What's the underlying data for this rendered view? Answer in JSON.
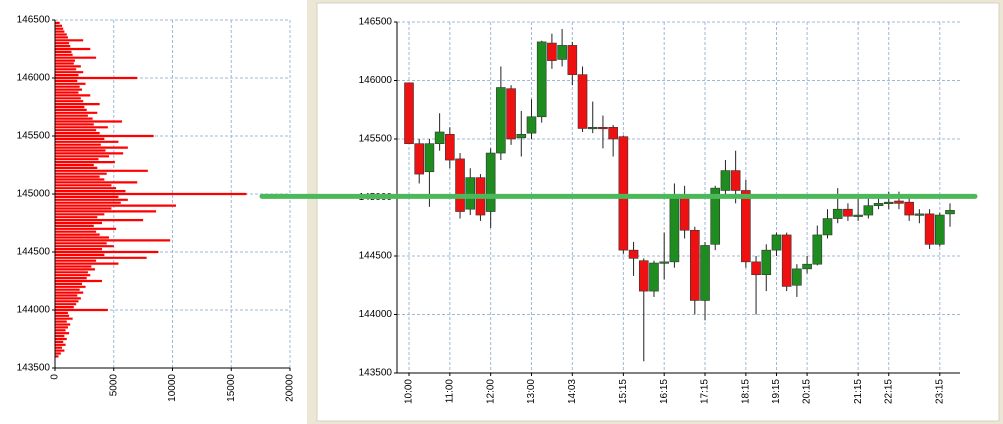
{
  "chart_data": [
    {
      "type": "barh",
      "color": "#ff0000",
      "y": [
        143600,
        143625,
        143650,
        143675,
        143700,
        143725,
        143750,
        143775,
        143800,
        143825,
        143850,
        143875,
        143900,
        143925,
        143950,
        143975,
        144000,
        144025,
        144050,
        144075,
        144100,
        144125,
        144150,
        144175,
        144200,
        144225,
        144250,
        144275,
        144300,
        144325,
        144350,
        144375,
        144400,
        144425,
        144450,
        144475,
        144500,
        144525,
        144550,
        144575,
        144600,
        144625,
        144650,
        144675,
        144700,
        144725,
        144750,
        144775,
        144800,
        144825,
        144850,
        144875,
        144900,
        144925,
        144950,
        144975,
        145000,
        145025,
        145050,
        145075,
        145100,
        145125,
        145150,
        145175,
        145200,
        145225,
        145250,
        145275,
        145300,
        145325,
        145350,
        145375,
        145400,
        145425,
        145450,
        145475,
        145500,
        145525,
        145550,
        145575,
        145600,
        145625,
        145650,
        145675,
        145700,
        145725,
        145750,
        145775,
        145800,
        145825,
        145850,
        145875,
        145900,
        145925,
        145950,
        145975,
        146000,
        146025,
        146050,
        146075,
        146100,
        146125,
        146150,
        146175,
        146200,
        146225,
        146250,
        146275,
        146300,
        146325,
        146350,
        146375,
        146400,
        146425,
        146450,
        146475
      ],
      "values": [
        300,
        500,
        800,
        600,
        900,
        700,
        1000,
        800,
        1200,
        900,
        1100,
        1300,
        1000,
        1500,
        1200,
        1100,
        4500,
        1600,
        1800,
        2000,
        2200,
        1900,
        2400,
        2100,
        2600,
        2300,
        4000,
        2700,
        3000,
        2800,
        3400,
        3100,
        5400,
        3500,
        7800,
        4200,
        8800,
        4000,
        5000,
        4400,
        9800,
        4600,
        3800,
        3500,
        5200,
        3300,
        4000,
        7500,
        3600,
        4200,
        8600,
        4800,
        10300,
        5600,
        6200,
        5400,
        16300,
        6000,
        5200,
        4800,
        7000,
        4200,
        3800,
        4400,
        7900,
        3600,
        3300,
        5100,
        3700,
        4600,
        5800,
        4300,
        6200,
        3900,
        5400,
        4200,
        8400,
        3800,
        3500,
        4500,
        3300,
        5700,
        3200,
        2800,
        3600,
        2700,
        2500,
        3800,
        2400,
        2200,
        3000,
        2000,
        2300,
        2100,
        2600,
        1900,
        7000,
        2000,
        2400,
        1800,
        2200,
        1600,
        1700,
        3500,
        1500,
        1400,
        3000,
        1300,
        1200,
        2400,
        1100,
        1000,
        800,
        700,
        600,
        400
      ],
      "xlim": [
        0,
        20000
      ],
      "xticks": [
        0,
        5000,
        10000,
        15000,
        20000
      ],
      "ylim": [
        143500,
        146500
      ],
      "yticks": [
        143500,
        144000,
        144500,
        145000,
        145500,
        146000,
        146500
      ],
      "grid": true
    },
    {
      "type": "candlestick",
      "up_color": "#1e8c1e",
      "down_color": "#ee1111",
      "categories": [
        "10:00",
        null,
        null,
        null,
        "11:00",
        null,
        null,
        null,
        "12:00",
        null,
        null,
        null,
        "13:00",
        null,
        null,
        null,
        "14:03",
        null,
        null,
        null,
        null,
        "15:15",
        null,
        null,
        null,
        "16:15",
        null,
        null,
        null,
        "17:15",
        null,
        null,
        null,
        "18:15",
        null,
        null,
        "19:15",
        null,
        null,
        "20:15",
        null,
        null,
        null,
        null,
        "21:15",
        null,
        null,
        "22:15",
        null,
        null,
        null,
        null,
        "23:15",
        null
      ],
      "open": [
        145980,
        145460,
        145220,
        145460,
        145540,
        145330,
        144900,
        145170,
        144880,
        145380,
        145930,
        145510,
        145550,
        145690,
        146320,
        146180,
        146300,
        146050,
        145590,
        145600,
        145600,
        145520,
        144550,
        144460,
        144200,
        144440,
        144450,
        145000,
        144720,
        144120,
        144600,
        145060,
        145230,
        145060,
        144450,
        144340,
        144550,
        144680,
        144250,
        144390,
        144430,
        144680,
        144820,
        144900,
        144840,
        144850,
        144930,
        144950,
        144970,
        144960,
        144850,
        144860,
        144600,
        144860
      ],
      "high": [
        145980,
        145500,
        145500,
        145720,
        145600,
        145380,
        145250,
        145200,
        145420,
        146120,
        145960,
        145740,
        145840,
        146340,
        146400,
        146440,
        146330,
        146120,
        145820,
        145700,
        145620,
        145530,
        144620,
        144480,
        144460,
        144700,
        145120,
        145100,
        144750,
        144620,
        145100,
        145320,
        145400,
        145150,
        144500,
        144600,
        144700,
        144700,
        144430,
        144500,
        144760,
        144900,
        145080,
        144950,
        145000,
        145020,
        145000,
        145050,
        145050,
        145000,
        144900,
        144900,
        144870,
        144950
      ],
      "low": [
        145460,
        145120,
        144920,
        145400,
        145250,
        144820,
        144850,
        144800,
        144740,
        145320,
        145450,
        145350,
        145500,
        145640,
        146100,
        146120,
        145960,
        145560,
        145550,
        145420,
        145350,
        144520,
        144330,
        143600,
        144150,
        144300,
        144400,
        144650,
        144000,
        143950,
        144550,
        145000,
        144950,
        144400,
        144000,
        144200,
        144500,
        144200,
        144150,
        144350,
        144420,
        144650,
        144780,
        144800,
        144800,
        144820,
        144900,
        144900,
        144900,
        144800,
        144780,
        144560,
        144580,
        144750
      ],
      "close": [
        145460,
        145200,
        145460,
        145560,
        145320,
        144880,
        145170,
        144850,
        145380,
        145940,
        145500,
        145540,
        145690,
        146330,
        146170,
        146300,
        146050,
        145590,
        145600,
        145590,
        145500,
        144550,
        144480,
        144200,
        144440,
        144450,
        145000,
        144720,
        144120,
        144590,
        145080,
        145230,
        145060,
        144450,
        144340,
        144550,
        144680,
        144240,
        144390,
        144430,
        144680,
        144820,
        144900,
        144840,
        144850,
        144930,
        144950,
        144960,
        144950,
        144850,
        144860,
        144600,
        144850,
        144890
      ],
      "ylim": [
        143500,
        146500
      ],
      "yticks": [
        143500,
        144000,
        144500,
        145000,
        145500,
        146000,
        146500
      ],
      "grid": true,
      "hline": 145010,
      "hline_color": "#4cb85a"
    }
  ]
}
